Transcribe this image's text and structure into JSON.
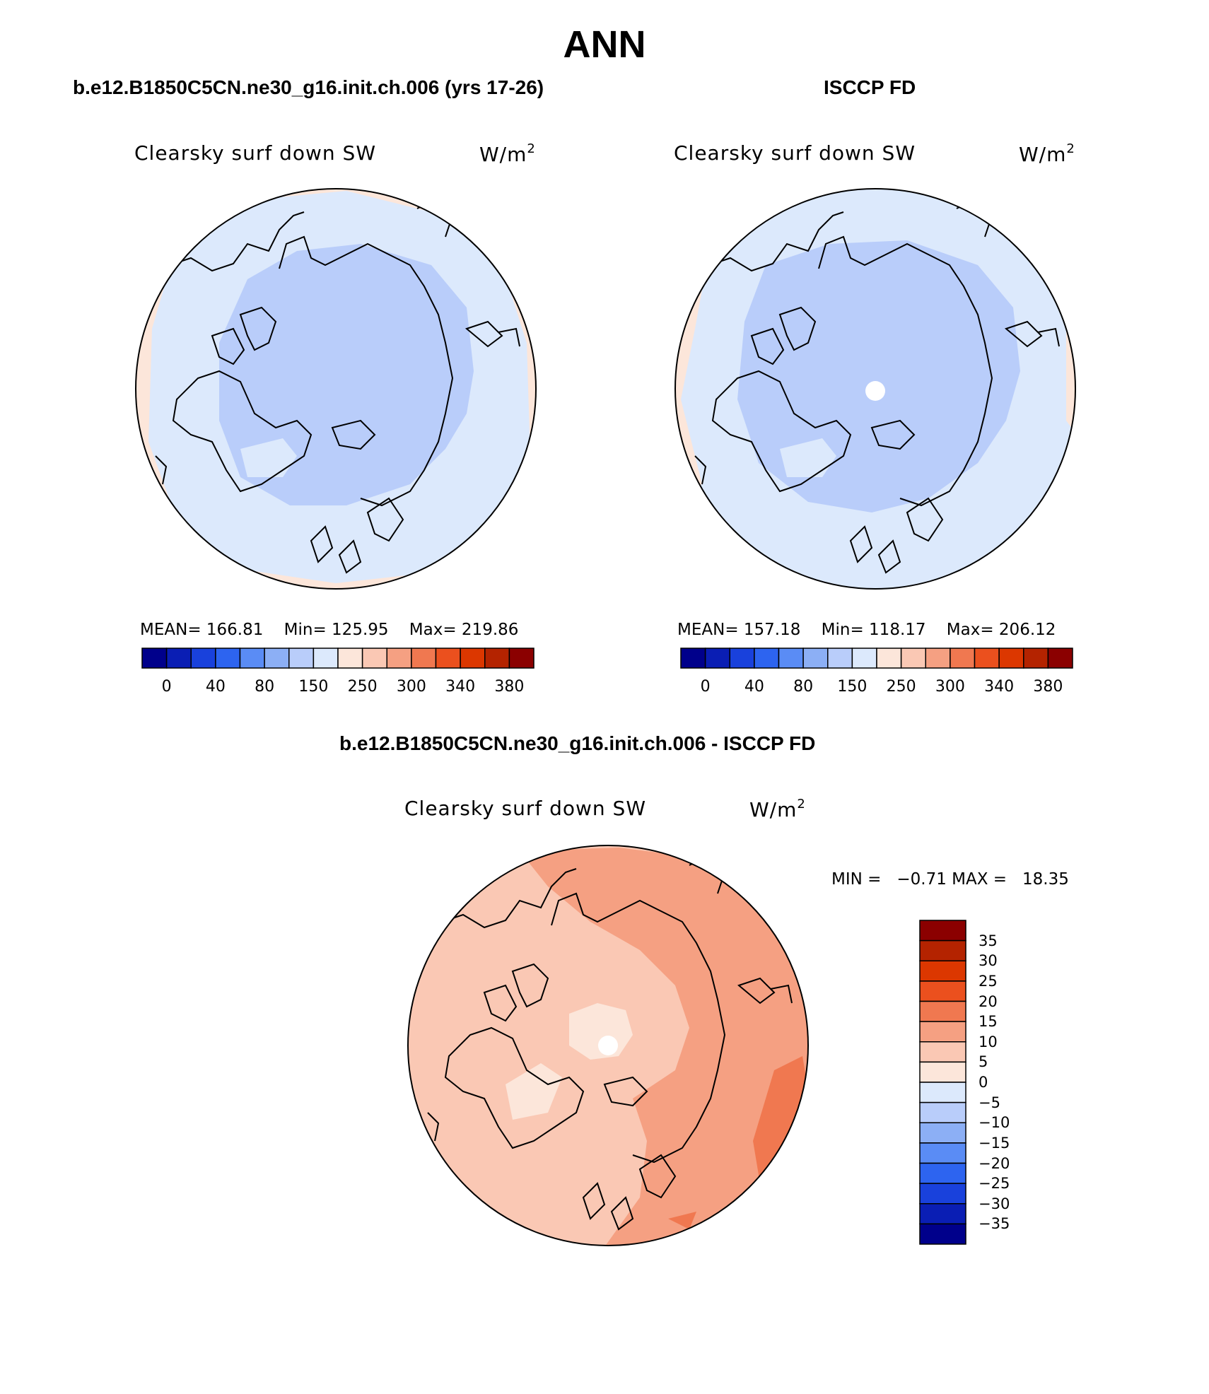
{
  "main_title": "ANN",
  "panels": [
    {
      "title": "b.e12.B1850C5CN.ne30_g16.init.ch.006 (yrs 17-26)",
      "variable": "Clearsky surf down SW",
      "units_base": "W/m",
      "units_exp": "2",
      "stats": {
        "mean_label": "MEAN=",
        "mean": "166.81",
        "min_label": "Min=",
        "min": "125.95",
        "max_label": "Max=",
        "max": "219.86"
      }
    },
    {
      "title": "ISCCP FD",
      "variable": "Clearsky surf down SW",
      "units_base": "W/m",
      "units_exp": "2",
      "stats": {
        "mean_label": "MEAN=",
        "mean": "157.18",
        "min_label": "Min=",
        "min": "118.17",
        "max_label": "Max=",
        "max": "206.12"
      }
    },
    {
      "title": "b.e12.B1850C5CN.ne30_g16.init.ch.006 - ISCCP FD",
      "variable": "Clearsky surf down SW",
      "units_base": "W/m",
      "units_exp": "2",
      "stats": {
        "min_label": "MIN =",
        "min": "−0.71",
        "max_label": "MAX =",
        "max": "18.35"
      }
    }
  ],
  "colorbar_abs": {
    "colors": [
      "#00008b",
      "#0a1eb4",
      "#1941dc",
      "#2d64f0",
      "#5a8cf5",
      "#8caff5",
      "#b9cdfa",
      "#dce9fc",
      "#fce6da",
      "#fac8b4",
      "#f5a082",
      "#f07850",
      "#eb501e",
      "#dc3700",
      "#b42300",
      "#8b0000"
    ],
    "ticks": [
      "0",
      "40",
      "80",
      "150",
      "250",
      "300",
      "340",
      "380"
    ],
    "tick_boxes": [
      1,
      3,
      5,
      7,
      9,
      11,
      13,
      15
    ]
  },
  "colorbar_diff": {
    "colors": [
      "#00008b",
      "#0a1eb4",
      "#1941dc",
      "#2d64f0",
      "#5a8cf5",
      "#8caff5",
      "#b9cdfa",
      "#dce9fc",
      "#fce6da",
      "#fac8b4",
      "#f5a082",
      "#f07850",
      "#eb501e",
      "#dc3700",
      "#b42300",
      "#8b0000"
    ],
    "ticks": [
      "35",
      "30",
      "25",
      "20",
      "15",
      "10",
      "5",
      "0",
      "−5",
      "−10",
      "−15",
      "−20",
      "−25",
      "−30",
      "−35"
    ]
  },
  "map_fills": {
    "outer_abs": "#fce6da",
    "mid": "#dce9fc",
    "inner": "#b9cdfa",
    "diff_base": "#fac8b4",
    "diff_strong": "#f5a082",
    "diff_peak": "#f07850",
    "diff_weak": "#fce6da"
  }
}
